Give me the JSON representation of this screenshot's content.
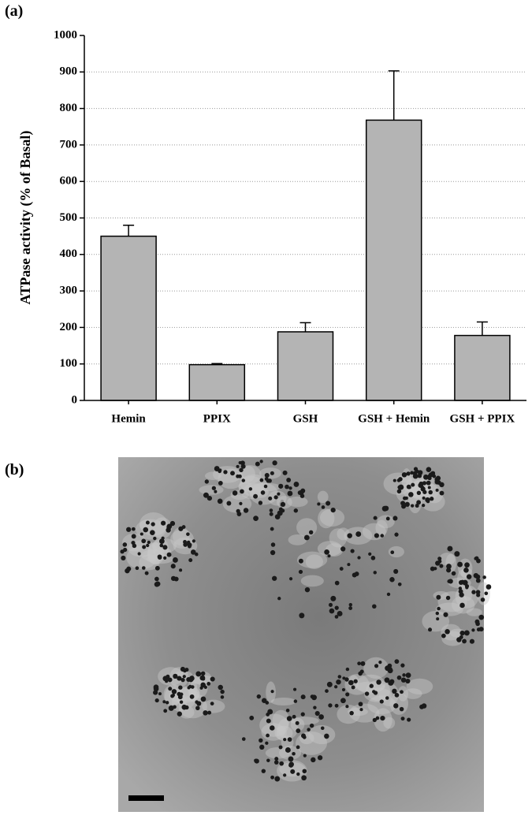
{
  "panel_a_label": "(a)",
  "panel_b_label": "(b)",
  "chart_data": {
    "type": "bar",
    "ylabel": "ATPase activity (% of Basal)",
    "categories": [
      "Hemin",
      "PPIX",
      "GSH",
      "GSH + Hemin",
      "GSH + PPIX"
    ],
    "values": [
      450,
      98,
      188,
      768,
      178
    ],
    "errors": [
      30,
      3,
      25,
      135,
      37
    ],
    "color": "#b4b4b4",
    "ylim": [
      0,
      1000
    ],
    "yticks": [
      0,
      100,
      200,
      300,
      400,
      500,
      600,
      700,
      800,
      900,
      1000
    ],
    "grid": true
  }
}
